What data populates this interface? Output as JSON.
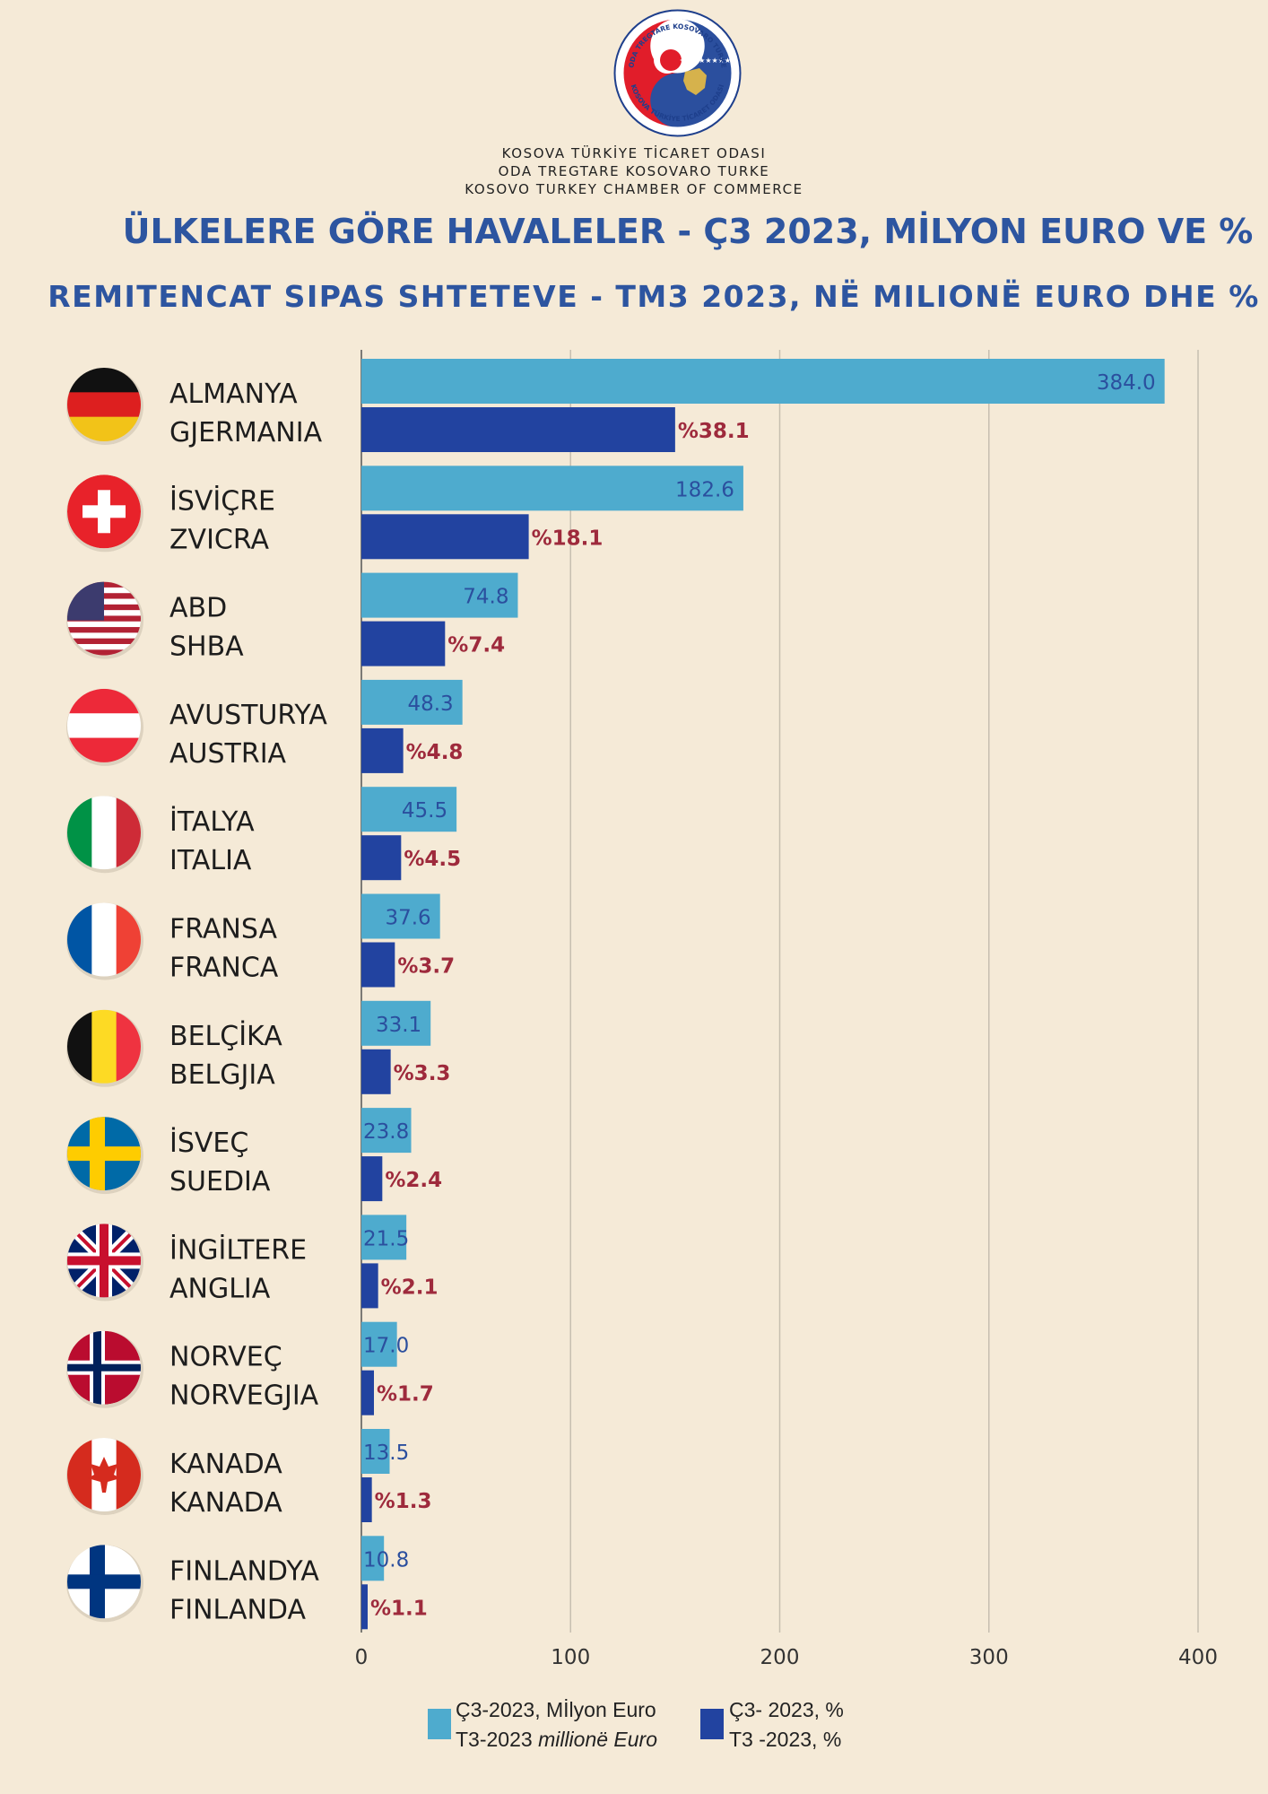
{
  "header": {
    "logo_text_top": "ODA TREGTARE KOSOVARO TURKE",
    "logo_text_bottom": "KOSOVA TÜRKİYE TİCARET ODASI",
    "org_line1": "KOSOVA TÜRKİYE TİCARET ODASI",
    "org_line2": "ODA TREGTARE KOSOVARO TURKE",
    "org_line3": "KOSOVO TURKEY CHAMBER OF COMMERCE",
    "title_tr": "ÜLKELERE GÖRE HAVALELER  -  Ç3 2023, MİLYON EURO VE %",
    "title_sq": "REMITENCAT SIPAS SHTETEVE - TM3 2023, NË MILIONË EURO DHE %"
  },
  "colors": {
    "background": "#f5ead7",
    "bar_million": "#4eabce",
    "bar_percent": "#2243a0",
    "label_million": "#2b4f9e",
    "label_percent": "#9e2a3c",
    "title": "#2d55a0"
  },
  "chart_data": {
    "type": "bar",
    "orientation": "horizontal",
    "categories": [
      {
        "tr": "ALMANYA",
        "sq": "GJERMANIA",
        "flag": "germany-flag-icon"
      },
      {
        "tr": "İSVİÇRE",
        "sq": "ZVICRA",
        "flag": "switzerland-flag-icon"
      },
      {
        "tr": "ABD",
        "sq": "SHBA",
        "flag": "usa-flag-icon"
      },
      {
        "tr": "AVUSTURYA",
        "sq": "AUSTRIA",
        "flag": "austria-flag-icon"
      },
      {
        "tr": "İTALYA",
        "sq": "ITALIA",
        "flag": "italy-flag-icon"
      },
      {
        "tr": "FRANSA",
        "sq": "FRANCA",
        "flag": "france-flag-icon"
      },
      {
        "tr": "BELÇİKA",
        "sq": "BELGJIA",
        "flag": "belgium-flag-icon"
      },
      {
        "tr": "İSVEÇ",
        "sq": "SUEDIA",
        "flag": "sweden-flag-icon"
      },
      {
        "tr": "İNGİLTERE",
        "sq": "ANGLIA",
        "flag": "uk-flag-icon"
      },
      {
        "tr": "NORVEÇ",
        "sq": "NORVEGJIA",
        "flag": "norway-flag-icon"
      },
      {
        "tr": "KANADA",
        "sq": "KANADA",
        "flag": "canada-flag-icon"
      },
      {
        "tr": "FINLANDYA",
        "sq": "FINLANDA",
        "flag": "finland-flag-icon"
      }
    ],
    "series": [
      {
        "values": [
          384.0,
          182.6,
          74.8,
          48.3,
          45.5,
          37.6,
          33.1,
          23.8,
          21.5,
          17.0,
          13.5,
          10.8
        ],
        "labels": [
          "384.0",
          "182.6",
          "74.8",
          "48.3",
          "45.5",
          "37.6",
          "33.1",
          "23.8",
          "21.5",
          "17.0",
          "13.5",
          "10.8"
        ]
      },
      {
        "values": [
          150,
          80,
          40,
          20,
          19,
          16,
          14,
          10,
          8,
          6,
          5,
          3
        ],
        "labels": [
          "%38.1",
          "%18.1",
          "%7.4",
          "%4.8",
          "%4.5",
          "%3.7",
          "%3.3",
          "%2.4",
          "%2.1",
          "%1.7",
          "%1.3",
          "%1.1"
        ]
      }
    ],
    "xlim": [
      0,
      400
    ],
    "xticks": [
      "0",
      "100",
      "200",
      "300",
      "400"
    ],
    "grid": true,
    "legend_position": "bottom"
  },
  "legend": {
    "million_line1": "Ç3-2023, Mİlyon Euro",
    "million_line2_prefix": "T3-2023 ",
    "million_line2_italic": "millionë Euro",
    "percent_line1": "Ç3- 2023, %",
    "percent_line2": "T3 -2023, %"
  }
}
